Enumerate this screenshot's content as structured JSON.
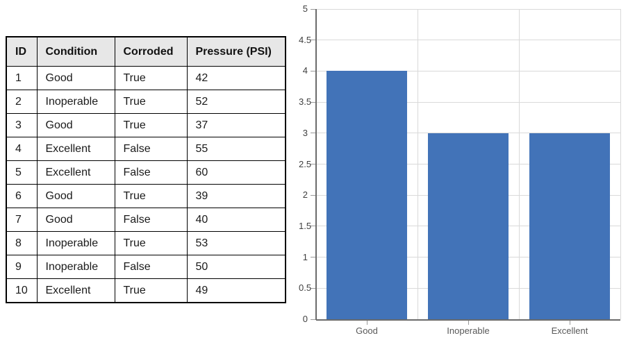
{
  "table": {
    "columns": [
      "ID",
      "Condition",
      "Corroded",
      "Pressure (PSI)"
    ],
    "column_keys": [
      "id",
      "condition",
      "corroded",
      "pressure-psi"
    ],
    "rows": [
      [
        "1",
        "Good",
        "True",
        "42"
      ],
      [
        "2",
        "Inoperable",
        "True",
        "52"
      ],
      [
        "3",
        "Good",
        "True",
        "37"
      ],
      [
        "4",
        "Excellent",
        "False",
        "55"
      ],
      [
        "5",
        "Excellent",
        "False",
        "60"
      ],
      [
        "6",
        "Good",
        "True",
        "39"
      ],
      [
        "7",
        "Good",
        "False",
        "40"
      ],
      [
        "8",
        "Inoperable",
        "True",
        "53"
      ],
      [
        "9",
        "Inoperable",
        "False",
        "50"
      ],
      [
        "10",
        "Excellent",
        "True",
        "49"
      ]
    ]
  },
  "chart_data": {
    "type": "bar",
    "categories": [
      "Good",
      "Inoperable",
      "Excellent"
    ],
    "values": [
      4,
      3,
      3
    ],
    "title": "",
    "xlabel": "",
    "ylabel": "",
    "ylim": [
      0,
      5
    ],
    "ytick_step": 0.5,
    "y_tick_labels": [
      "0",
      "0.5",
      "1",
      "1.5",
      "2",
      "2.5",
      "3",
      "3.5",
      "4",
      "4.5",
      "5"
    ],
    "grid": true,
    "legend": "none",
    "bar_width_fraction": 0.8
  },
  "colors": {
    "bar": "#4273B8",
    "grid": "#D9D9D9",
    "axis": "#6B6B6B",
    "tick": "#999999",
    "y_label": "#404040",
    "x_label": "#595959",
    "table_header_bg": "#E7E7E7",
    "table_border": "#000000"
  }
}
